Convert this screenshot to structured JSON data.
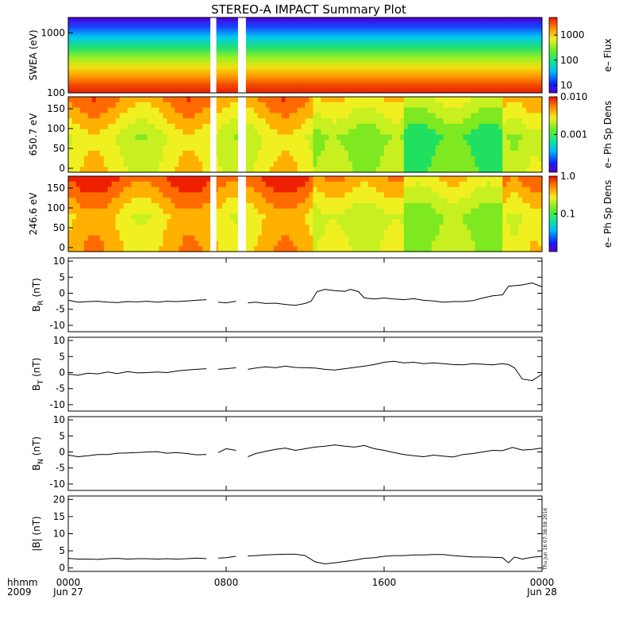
{
  "figure": {
    "title": "STEREO-A IMPACT Summary Plot",
    "timestamp": "Thu Jun 16 07:38:58 2016",
    "xaxis": {
      "corner_top": "hhmm",
      "corner_bottom": "2009",
      "ticks": [
        "0000",
        "0800",
        "1600",
        "0000"
      ],
      "dates": [
        "Jun 27",
        "Jun 28"
      ]
    }
  },
  "chart_data": [
    {
      "type": "heatmap",
      "ylabel": "SWEA (eV)",
      "yscale": "log",
      "ylim": [
        100,
        1800
      ],
      "yticks": [
        "1000",
        "100"
      ],
      "colorbar": {
        "label": "e– Flux",
        "scale": "log",
        "range": [
          5,
          5000
        ],
        "ticks": [
          "1000",
          "100",
          "10"
        ]
      },
      "data_gaps_hours": [
        [
          7.2,
          7.5
        ],
        [
          8.6,
          9.0
        ]
      ]
    },
    {
      "type": "heatmap",
      "ylabel": "650.7 eV",
      "ylim": [
        -10,
        180
      ],
      "yticks": [
        "150",
        "100",
        "50",
        "0"
      ],
      "colorbar": {
        "label": "e– Ph Sp Dens",
        "scale": "log",
        "range": [
          0.0001,
          0.01
        ],
        "ticks": [
          "0.010",
          "0.001"
        ]
      },
      "data_gaps_hours": [
        [
          7.2,
          7.5
        ],
        [
          8.6,
          9.0
        ]
      ]
    },
    {
      "type": "heatmap",
      "ylabel": "246.6 eV",
      "ylim": [
        -10,
        180
      ],
      "yticks": [
        "150",
        "100",
        "50",
        "0"
      ],
      "colorbar": {
        "label": "e– Ph Sp Dens",
        "scale": "log",
        "range": [
          0.01,
          1.0
        ],
        "ticks": [
          "1.0",
          "0.1"
        ]
      },
      "data_gaps_hours": [
        [
          7.2,
          7.5
        ],
        [
          8.6,
          9.0
        ]
      ]
    },
    {
      "type": "line",
      "ylabel": "B_R (nT)",
      "ylabel_main": "B",
      "ylabel_sub": "R",
      "ylabel_unit": "(nT)",
      "ylim": [
        -12,
        11
      ],
      "yticks": [
        "10",
        "5",
        "0",
        "-5",
        "-10"
      ],
      "x_hours": [
        0,
        0.5,
        1,
        1.5,
        2,
        2.5,
        3,
        3.5,
        4,
        4.5,
        5,
        5.5,
        6,
        6.5,
        7.0,
        7.6,
        8.0,
        8.5,
        9.1,
        9.5,
        10,
        10.5,
        11,
        11.5,
        12,
        12.3,
        12.6,
        13,
        13.5,
        14,
        14.3,
        14.7,
        15,
        15.5,
        16,
        16.5,
        17,
        17.5,
        18,
        18.5,
        19,
        19.5,
        20,
        20.5,
        21,
        21.5,
        22,
        22.3,
        22.7,
        23,
        23.5,
        24
      ],
      "y_nT": [
        -2.2,
        -2.8,
        -2.6,
        -2.5,
        -2.8,
        -2.9,
        -2.6,
        -2.7,
        -2.5,
        -2.8,
        -2.5,
        -2.6,
        -2.4,
        -2.2,
        -2.0,
        -2.8,
        -3.0,
        -2.5,
        -3.0,
        -2.8,
        -3.2,
        -3.1,
        -3.5,
        -3.8,
        -3.2,
        -2.5,
        0.5,
        1.2,
        0.8,
        0.6,
        1.2,
        0.5,
        -1.5,
        -1.8,
        -1.5,
        -1.8,
        -2.0,
        -1.7,
        -2.2,
        -2.4,
        -2.8,
        -2.6,
        -2.6,
        -2.3,
        -1.5,
        -0.8,
        -0.5,
        2.2,
        2.4,
        2.6,
        3.2,
        2.0
      ]
    },
    {
      "type": "line",
      "ylabel": "B_T (nT)",
      "ylabel_main": "B",
      "ylabel_sub": "T",
      "ylabel_unit": "(nT)",
      "ylim": [
        -12,
        11
      ],
      "yticks": [
        "10",
        "5",
        "0",
        "-5",
        "-10"
      ],
      "x_hours": [
        0,
        0.5,
        1,
        1.5,
        2,
        2.5,
        3,
        3.5,
        4,
        4.5,
        5,
        5.5,
        6,
        6.5,
        7.0,
        7.6,
        8.0,
        8.5,
        9.1,
        9.5,
        10,
        10.5,
        11,
        11.5,
        12,
        12.5,
        13,
        13.5,
        14,
        14.5,
        15,
        15.5,
        16,
        16.5,
        17,
        17.5,
        18,
        18.5,
        19,
        19.5,
        20,
        20.5,
        21,
        21.5,
        22,
        22.3,
        22.6,
        23,
        23.5,
        24
      ],
      "y_nT": [
        -0.5,
        -0.8,
        -0.2,
        -0.4,
        0.2,
        -0.3,
        0.3,
        -0.1,
        0.0,
        0.2,
        0.0,
        0.5,
        0.8,
        1.0,
        1.2,
        1.0,
        1.2,
        1.5,
        1.0,
        1.4,
        1.8,
        1.5,
        2.0,
        1.6,
        1.5,
        1.4,
        1.0,
        0.8,
        1.2,
        1.6,
        2.0,
        2.5,
        3.2,
        3.5,
        3.0,
        3.2,
        2.8,
        3.0,
        2.8,
        2.5,
        2.4,
        2.8,
        2.6,
        2.4,
        2.8,
        2.5,
        1.5,
        -2.0,
        -2.5,
        -0.5
      ]
    },
    {
      "type": "line",
      "ylabel": "B_N (nT)",
      "ylabel_main": "B",
      "ylabel_sub": "N",
      "ylabel_unit": "(nT)",
      "ylim": [
        -12,
        11
      ],
      "yticks": [
        "10",
        "5",
        "0",
        "-5",
        "-10"
      ],
      "x_hours": [
        0,
        0.5,
        1,
        1.5,
        2,
        2.5,
        3,
        3.5,
        4,
        4.5,
        5,
        5.5,
        6,
        6.5,
        7.0,
        7.6,
        8.0,
        8.5,
        9.1,
        9.5,
        10,
        10.5,
        11,
        11.5,
        12,
        12.5,
        13,
        13.5,
        14,
        14.5,
        15,
        15.5,
        16,
        16.5,
        17,
        17.5,
        18,
        18.5,
        19,
        19.5,
        20,
        20.5,
        21,
        21.5,
        22,
        22.5,
        23,
        23.5,
        24
      ],
      "y_nT": [
        -1.0,
        -1.5,
        -1.2,
        -0.8,
        -0.8,
        -0.4,
        -0.3,
        -0.2,
        0.0,
        0.1,
        -0.4,
        -0.2,
        -0.5,
        -0.9,
        -0.8,
        -0.2,
        1.0,
        0.5,
        -1.5,
        -0.5,
        0.2,
        0.8,
        1.2,
        0.5,
        1.0,
        1.5,
        1.8,
        2.2,
        1.8,
        1.5,
        2.0,
        1.0,
        0.5,
        -0.2,
        -0.8,
        -1.2,
        -1.5,
        -1.0,
        -1.3,
        -1.6,
        -0.8,
        -0.5,
        0.0,
        0.5,
        0.4,
        1.4,
        0.6,
        0.8,
        1.2
      ]
    },
    {
      "type": "line",
      "ylabel": "|B| (nT)",
      "ylim": [
        -1,
        21
      ],
      "yticks": [
        "20",
        "15",
        "10",
        "5",
        "0"
      ],
      "x_hours": [
        0,
        0.5,
        1,
        1.5,
        2,
        2.5,
        3,
        3.5,
        4,
        4.5,
        5,
        5.5,
        6,
        6.5,
        7.0,
        7.6,
        8.0,
        8.5,
        9.1,
        9.5,
        10,
        10.5,
        11,
        11.5,
        12,
        12.5,
        13,
        13.5,
        14,
        14.5,
        15,
        15.5,
        16,
        16.5,
        17,
        17.5,
        18,
        18.5,
        19,
        19.5,
        20,
        20.5,
        21,
        21.5,
        22,
        22.3,
        22.6,
        23,
        23.5,
        24
      ],
      "y_nT": [
        2.8,
        2.6,
        2.6,
        2.5,
        2.7,
        2.8,
        2.6,
        2.7,
        2.7,
        2.6,
        2.7,
        2.6,
        2.7,
        2.9,
        2.7,
        2.9,
        3.0,
        3.4,
        3.5,
        3.6,
        3.8,
        3.9,
        4.0,
        4.0,
        3.6,
        1.8,
        1.2,
        1.5,
        1.9,
        2.3,
        2.8,
        3.0,
        3.4,
        3.6,
        3.6,
        3.8,
        3.8,
        3.9,
        3.9,
        3.6,
        3.4,
        3.2,
        3.2,
        3.1,
        3.0,
        1.5,
        3.2,
        2.6,
        3.1,
        3.4
      ]
    }
  ]
}
